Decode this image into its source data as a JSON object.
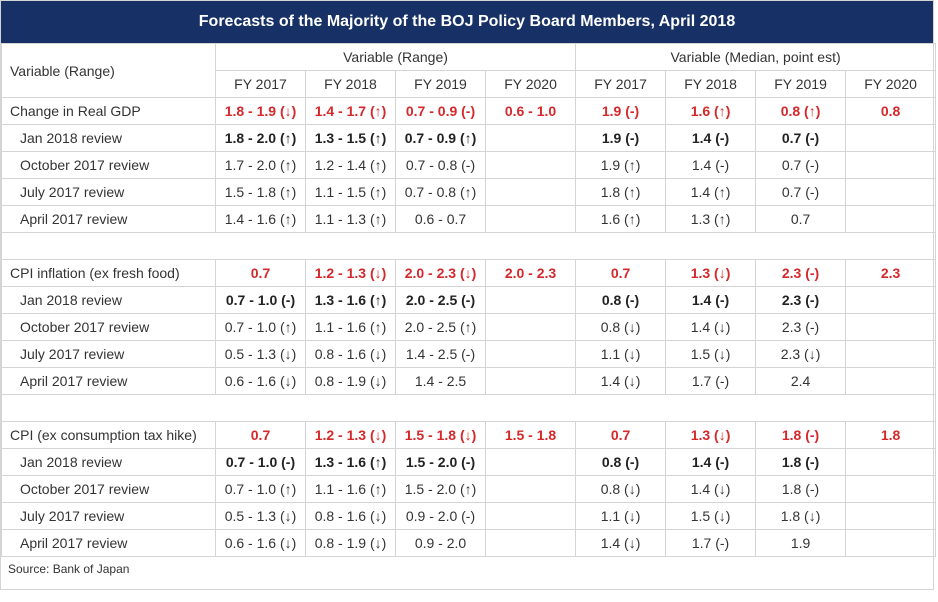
{
  "title": "Forecasts of the Majority of the BOJ Policy Board Members, April 2018",
  "source": "Source: Bank of Japan",
  "header": {
    "row_label": "Variable (Range)",
    "group_range": "Variable (Range)",
    "group_median": "Variable (Median, point est)",
    "years": [
      "FY 2017",
      "FY 2018",
      "FY 2019",
      "FY 2020"
    ]
  },
  "colors": {
    "title_bg": "#173066",
    "highlight": "#d4282b",
    "border": "#d4d4d4"
  },
  "chart_data": {
    "type": "table",
    "title": "Forecasts of the Majority of the BOJ Policy Board Members, April 2018",
    "sections": [
      {
        "label": "Change in Real GDP",
        "range": [
          "1.8 - 1.9 (↓)",
          "1.4 - 1.7 (↑)",
          "0.7 - 0.9 (-)",
          "0.6 - 1.0"
        ],
        "median": [
          "1.9 (-)",
          "1.6 (↑)",
          "0.8 (↑)",
          "0.8"
        ],
        "reviews": [
          {
            "label": "Jan 2018 review",
            "range": [
              "1.8 - 2.0 (↑)",
              "1.3 - 1.5 (↑)",
              "0.7 - 0.9 (↑)",
              ""
            ],
            "median": [
              "1.9 (-)",
              "1.4 (-)",
              "0.7 (-)",
              ""
            ]
          },
          {
            "label": "October 2017 review",
            "range": [
              "1.7 - 2.0 (↑)",
              "1.2 - 1.4 (↑)",
              "0.7 - 0.8 (-)",
              ""
            ],
            "median": [
              "1.9 (↑)",
              "1.4 (-)",
              "0.7 (-)",
              ""
            ]
          },
          {
            "label": "July 2017 review",
            "range": [
              "1.5 - 1.8 (↑)",
              "1.1 - 1.5 (↑)",
              "0.7 - 0.8 (↑)",
              ""
            ],
            "median": [
              "1.8 (↑)",
              "1.4 (↑)",
              "0.7 (-)",
              ""
            ]
          },
          {
            "label": "April 2017 review",
            "range": [
              "1.4 - 1.6 (↑)",
              "1.1 - 1.3 (↑)",
              "0.6 - 0.7",
              ""
            ],
            "median": [
              "1.6 (↑)",
              "1.3 (↑)",
              "0.7",
              ""
            ]
          }
        ]
      },
      {
        "label": "CPI inflation (ex fresh food)",
        "range": [
          "0.7",
          "1.2 - 1.3 (↓)",
          "2.0 - 2.3 (↓)",
          "2.0 - 2.3"
        ],
        "median": [
          "0.7",
          "1.3 (↓)",
          "2.3 (-)",
          "2.3"
        ],
        "reviews": [
          {
            "label": "Jan 2018 review",
            "range": [
              "0.7 - 1.0 (-)",
              "1.3 - 1.6 (↑)",
              "2.0 - 2.5 (-)",
              ""
            ],
            "median": [
              "0.8 (-)",
              "1.4 (-)",
              "2.3 (-)",
              ""
            ]
          },
          {
            "label": "October 2017 review",
            "range": [
              "0.7 - 1.0 (↑)",
              "1.1 - 1.6 (↑)",
              "2.0 - 2.5 (↑)",
              ""
            ],
            "median": [
              "0.8 (↓)",
              "1.4 (↓)",
              "2.3 (-)",
              ""
            ]
          },
          {
            "label": "July 2017 review",
            "range": [
              "0.5 - 1.3 (↓)",
              "0.8 - 1.6 (↓)",
              "1.4 - 2.5 (-)",
              ""
            ],
            "median": [
              "1.1 (↓)",
              "1.5 (↓)",
              "2.3 (↓)",
              ""
            ]
          },
          {
            "label": "April 2017 review",
            "range": [
              "0.6 - 1.6 (↓)",
              "0.8 - 1.9 (↓)",
              "1.4 - 2.5",
              ""
            ],
            "median": [
              "1.4 (↓)",
              "1.7 (-)",
              "2.4",
              ""
            ]
          }
        ]
      },
      {
        "label": "CPI (ex consumption tax hike)",
        "range": [
          "0.7",
          "1.2 - 1.3 (↓)",
          "1.5 - 1.8 (↓)",
          "1.5 - 1.8"
        ],
        "median": [
          "0.7",
          "1.3 (↓)",
          "1.8 (-)",
          "1.8"
        ],
        "reviews": [
          {
            "label": "Jan 2018 review",
            "range": [
              "0.7 - 1.0 (-)",
              "1.3 - 1.6 (↑)",
              "1.5 - 2.0 (-)",
              ""
            ],
            "median": [
              "0.8 (-)",
              "1.4 (-)",
              "1.8 (-)",
              ""
            ]
          },
          {
            "label": "October 2017 review",
            "range": [
              "0.7 - 1.0 (↑)",
              "1.1 - 1.6 (↑)",
              "1.5 - 2.0 (↑)",
              ""
            ],
            "median": [
              "0.8 (↓)",
              "1.4 (↓)",
              "1.8 (-)",
              ""
            ]
          },
          {
            "label": "July 2017 review",
            "range": [
              "0.5 - 1.3 (↓)",
              "0.8 - 1.6 (↓)",
              "0.9 - 2.0 (-)",
              ""
            ],
            "median": [
              "1.1 (↓)",
              "1.5 (↓)",
              "1.8 (↓)",
              ""
            ]
          },
          {
            "label": "April 2017 review",
            "range": [
              "0.6 - 1.6 (↓)",
              "0.8 - 1.9 (↓)",
              "0.9 - 2.0",
              ""
            ],
            "median": [
              "1.4 (↓)",
              "1.7 (-)",
              "1.9",
              ""
            ]
          }
        ]
      }
    ]
  }
}
